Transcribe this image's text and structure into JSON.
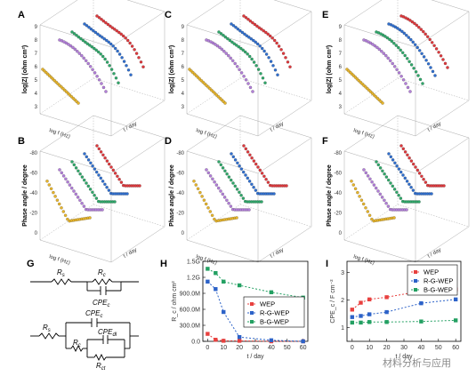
{
  "panels": {
    "A": {
      "label": "A",
      "ylabel": "log|Z| (ohm cm²)",
      "xlabel": "log f (Hz)",
      "zlabel": "t / day",
      "yticks": [
        "9",
        "8",
        "7",
        "6",
        "5",
        "4",
        "3"
      ]
    },
    "B": {
      "label": "B",
      "ylabel": "Phase angle / degree",
      "xlabel": "log f (Hz)",
      "zlabel": "t / day",
      "yticks": [
        "-80",
        "-60",
        "-40",
        "-20",
        "0"
      ]
    },
    "C": {
      "label": "C",
      "ylabel": "log|Z| (ohm cm²)",
      "xlabel": "log f (Hz)",
      "zlabel": "t / day",
      "yticks": [
        "9",
        "8",
        "7",
        "6",
        "5",
        "4",
        "3"
      ]
    },
    "D": {
      "label": "D",
      "ylabel": "Phase angle / degree",
      "xlabel": "log f (Hz)",
      "zlabel": "t / day",
      "yticks": [
        "-80",
        "-60",
        "-40",
        "-20",
        "0"
      ]
    },
    "E": {
      "label": "E",
      "ylabel": "log|Z| (ohm cm²)",
      "xlabel": "log f (Hz)",
      "zlabel": "t / day",
      "yticks": [
        "9",
        "8",
        "7",
        "6",
        "5",
        "4",
        "3"
      ]
    },
    "F": {
      "label": "F",
      "ylabel": "Phase angle / degree",
      "xlabel": "log f (Hz)",
      "zlabel": "t / day",
      "yticks": [
        "-80",
        "-60",
        "-40",
        "-20",
        "0"
      ]
    },
    "G": {
      "label": "G",
      "circuit1": {
        "r1": "R",
        "r1sub": "s",
        "r2": "R",
        "r2sub": "c",
        "c": "CPE",
        "csub": "c"
      },
      "circuit2": {
        "r1": "R",
        "r1sub": "s",
        "cpe_c": "CPE",
        "cpe_csub": "c",
        "rc": "R",
        "rcsub": "c",
        "cpe_dl": "CPE",
        "cpe_dlsub": "dl",
        "rct": "R",
        "rctsub": "ct"
      }
    },
    "H": {
      "label": "H"
    },
    "I": {
      "label": "I"
    }
  },
  "colors": {
    "yellow": "#e8b52a",
    "purple": "#b27ed9",
    "green": "#2fa86a",
    "blue": "#2f6fd0",
    "red": "#e0383c",
    "red_sq": "#e8413f",
    "blue_sq": "#2c62c8",
    "green_sq": "#23a062"
  },
  "chart_data": [
    {
      "type": "scatter",
      "panel": "H",
      "xlabel": "t / day",
      "ylabel": "R_c / ohm cm²",
      "xticks": [
        "0",
        "10",
        "20",
        "30",
        "40",
        "50",
        "60"
      ],
      "yticks": [
        "0.0",
        "300.0M",
        "600.0M",
        "900.0M",
        "1.2G",
        "1.5G"
      ],
      "x": [
        0,
        5,
        10,
        20,
        40,
        60
      ],
      "ylim": [
        0,
        1.5
      ],
      "xlim": [
        -3,
        63
      ],
      "legend": "center-right",
      "series": [
        {
          "name": "WEP",
          "color": "#e8413f",
          "values": [
            0.14,
            0.03,
            0.01,
            0.01,
            0.0,
            0.0
          ]
        },
        {
          "name": "R-G-WEP",
          "color": "#2c62c8",
          "values": [
            1.12,
            0.98,
            0.55,
            0.08,
            0.02,
            0.0
          ]
        },
        {
          "name": "B-G-WEP",
          "color": "#23a062",
          "values": [
            1.36,
            1.28,
            1.12,
            1.05,
            0.92,
            0.82
          ]
        }
      ]
    },
    {
      "type": "scatter",
      "panel": "I",
      "xlabel": "t / day",
      "ylabel": "CPE_c / F cm⁻²",
      "xticks": [
        "0",
        "10",
        "20",
        "30",
        "40",
        "50",
        "60"
      ],
      "yticks": [
        "1",
        "2",
        "3"
      ],
      "x": [
        0,
        5,
        10,
        20,
        40,
        60
      ],
      "ylim": [
        0.5,
        3.4
      ],
      "xlim": [
        -3,
        63
      ],
      "legend": "top-right",
      "series": [
        {
          "name": "WEP",
          "color": "#e8413f",
          "values": [
            1.65,
            1.9,
            2.02,
            2.1,
            2.32,
            2.38
          ]
        },
        {
          "name": "R-G-WEP",
          "color": "#2c62c8",
          "values": [
            1.38,
            1.42,
            1.48,
            1.56,
            1.88,
            2.02
          ]
        },
        {
          "name": "B-G-WEP",
          "color": "#23a062",
          "values": [
            1.18,
            1.18,
            1.2,
            1.2,
            1.22,
            1.26
          ]
        }
      ]
    }
  ],
  "watermark": "材料分析与应用"
}
